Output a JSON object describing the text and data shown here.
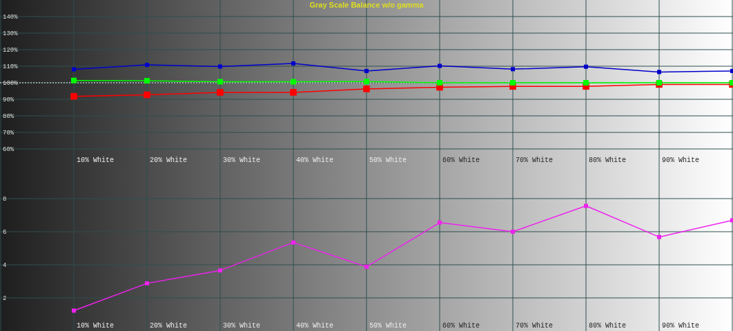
{
  "chart_data": [
    {
      "type": "line",
      "title": "Gray Scale Balance w/o gamma",
      "categories": [
        null,
        "10% White",
        "20% White",
        "30% White",
        "40% White",
        "50% White",
        "60% White",
        "70% White",
        "80% White",
        "90% White",
        null
      ],
      "series": [
        {
          "color": "#ff0000",
          "values": [
            null,
            91.8,
            92.7,
            94.2,
            94.2,
            96.3,
            97.3,
            97.8,
            97.8,
            99.0,
            99.0
          ]
        },
        {
          "color": "#00ff00",
          "values": [
            null,
            101.4,
            101.2,
            100.6,
            100.6,
            100.7,
            100.0,
            100.0,
            100.0,
            100.0,
            100.0
          ]
        },
        {
          "color": "#0000cc",
          "values": [
            null,
            108.1,
            110.8,
            109.8,
            111.7,
            107.1,
            110.2,
            108.2,
            109.7,
            106.5,
            107.1
          ]
        }
      ],
      "ylim": [
        50,
        150
      ],
      "yticks": [
        {
          "value": 60,
          "label": "60%"
        },
        {
          "value": 70,
          "label": "70%"
        },
        {
          "value": 80,
          "label": "80%"
        },
        {
          "value": 90,
          "label": "90%"
        },
        {
          "value": 100,
          "label": "100%"
        },
        {
          "value": 110,
          "label": "110%"
        },
        {
          "value": 120,
          "label": "120%"
        },
        {
          "value": 130,
          "label": "130%"
        },
        {
          "value": 140,
          "label": "140%"
        }
      ],
      "ref_lines": [
        {
          "axis": "y",
          "value": 100,
          "color": "#ffffff",
          "line_style": "dotted"
        }
      ],
      "grid": true,
      "marker": "square"
    },
    {
      "type": "line",
      "categories": [
        null,
        "10% White",
        "20% White",
        "30% White",
        "40% White",
        "50% White",
        "60% White",
        "70% White",
        "80% White",
        "90% White",
        null
      ],
      "series": [
        {
          "color": "#ee22ee",
          "values": [
            null,
            1.23,
            2.88,
            3.66,
            5.35,
            3.88,
            6.55,
            6.0,
            7.56,
            5.68,
            6.69
          ]
        }
      ],
      "ylim": [
        0,
        10
      ],
      "yticks": [
        2,
        4,
        6,
        8
      ],
      "grid": true,
      "marker": "square"
    }
  ]
}
